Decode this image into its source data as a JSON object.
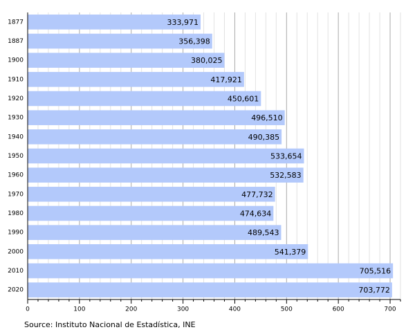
{
  "chart_data": {
    "type": "bar",
    "orientation": "horizontal",
    "source": "Source: Instituto Nacional de Estadística, INE",
    "categories": [
      "1877",
      "1887",
      "1900",
      "1910",
      "1920",
      "1930",
      "1940",
      "1950",
      "1960",
      "1970",
      "1980",
      "1990",
      "2000",
      "2010",
      "2020"
    ],
    "values": [
      333.971,
      356.398,
      380.025,
      417.921,
      450.601,
      496.51,
      490.385,
      533.654,
      532.583,
      477.732,
      474.634,
      489.543,
      541.379,
      705.516,
      703.772
    ],
    "value_labels": [
      "333,971",
      "356,398",
      "380,025",
      "417,921",
      "450,601",
      "496,510",
      "490,385",
      "533,654",
      "532,583",
      "477,732",
      "474,634",
      "489,543",
      "541,379",
      "705,516",
      "703,772"
    ],
    "color": "#b3c9fb",
    "xlim": [
      0,
      720
    ],
    "xticks": [
      0,
      100,
      200,
      300,
      400,
      500,
      600,
      700
    ],
    "xminorticks": [
      20,
      40,
      60,
      80,
      120,
      140,
      160,
      180,
      220,
      240,
      260,
      280,
      320,
      340,
      360,
      380,
      420,
      440,
      460,
      480,
      520,
      540,
      560,
      580,
      620,
      640,
      660,
      680,
      720
    ],
    "grid": true
  }
}
